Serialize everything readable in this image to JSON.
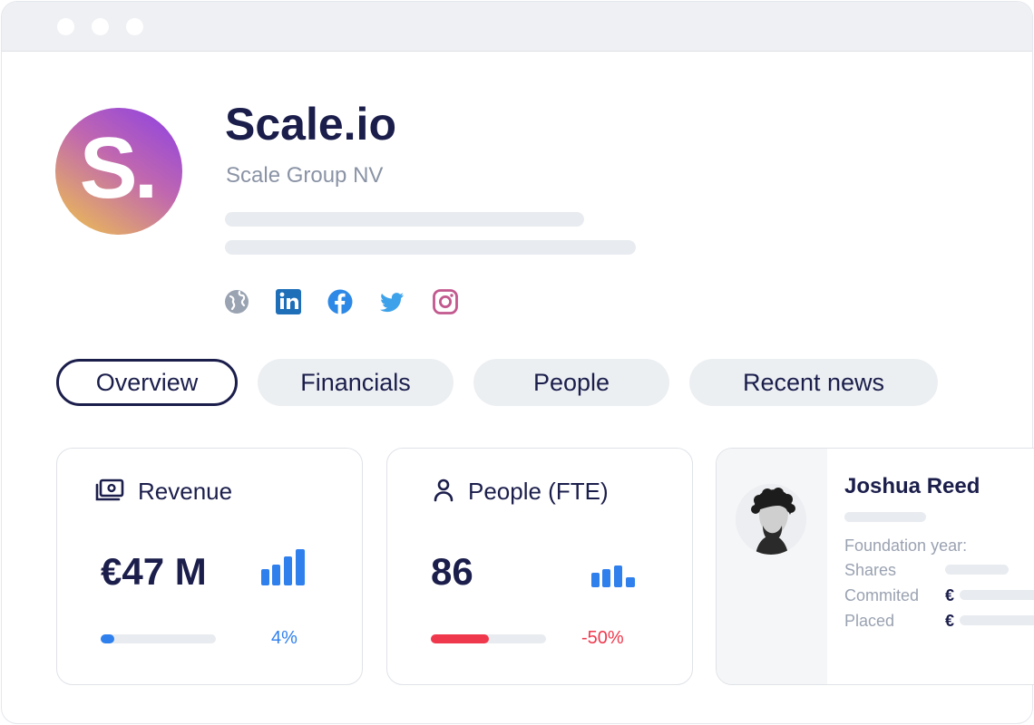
{
  "company": {
    "logo_letter": "S.",
    "name": "Scale.io",
    "legal_name": "Scale Group NV"
  },
  "social_icons": [
    "globe-icon",
    "linkedin-icon",
    "facebook-icon",
    "twitter-icon",
    "instagram-icon"
  ],
  "tabs": [
    {
      "label": "Overview",
      "active": true
    },
    {
      "label": "Financials",
      "active": false
    },
    {
      "label": "People",
      "active": false
    },
    {
      "label": "Recent news",
      "active": false
    }
  ],
  "cards": {
    "revenue": {
      "title": "Revenue",
      "value": "€47 M",
      "change": "4%",
      "progress_fraction": 0.12,
      "accent": "#2f80ed"
    },
    "people": {
      "title": "People (FTE)",
      "value": "86",
      "change": "-50%",
      "progress_fraction": 0.5,
      "accent": "#f0384d"
    }
  },
  "person": {
    "name": "Joshua Reed",
    "labels": {
      "foundation_year": "Foundation year:",
      "shares": "Shares",
      "committed": "Commited",
      "placed": "Placed"
    },
    "currency": "€"
  },
  "colors": {
    "navy": "#1b1e4b",
    "blue": "#2f80ed",
    "red": "#f0384d",
    "muted": "#8a93a5"
  }
}
